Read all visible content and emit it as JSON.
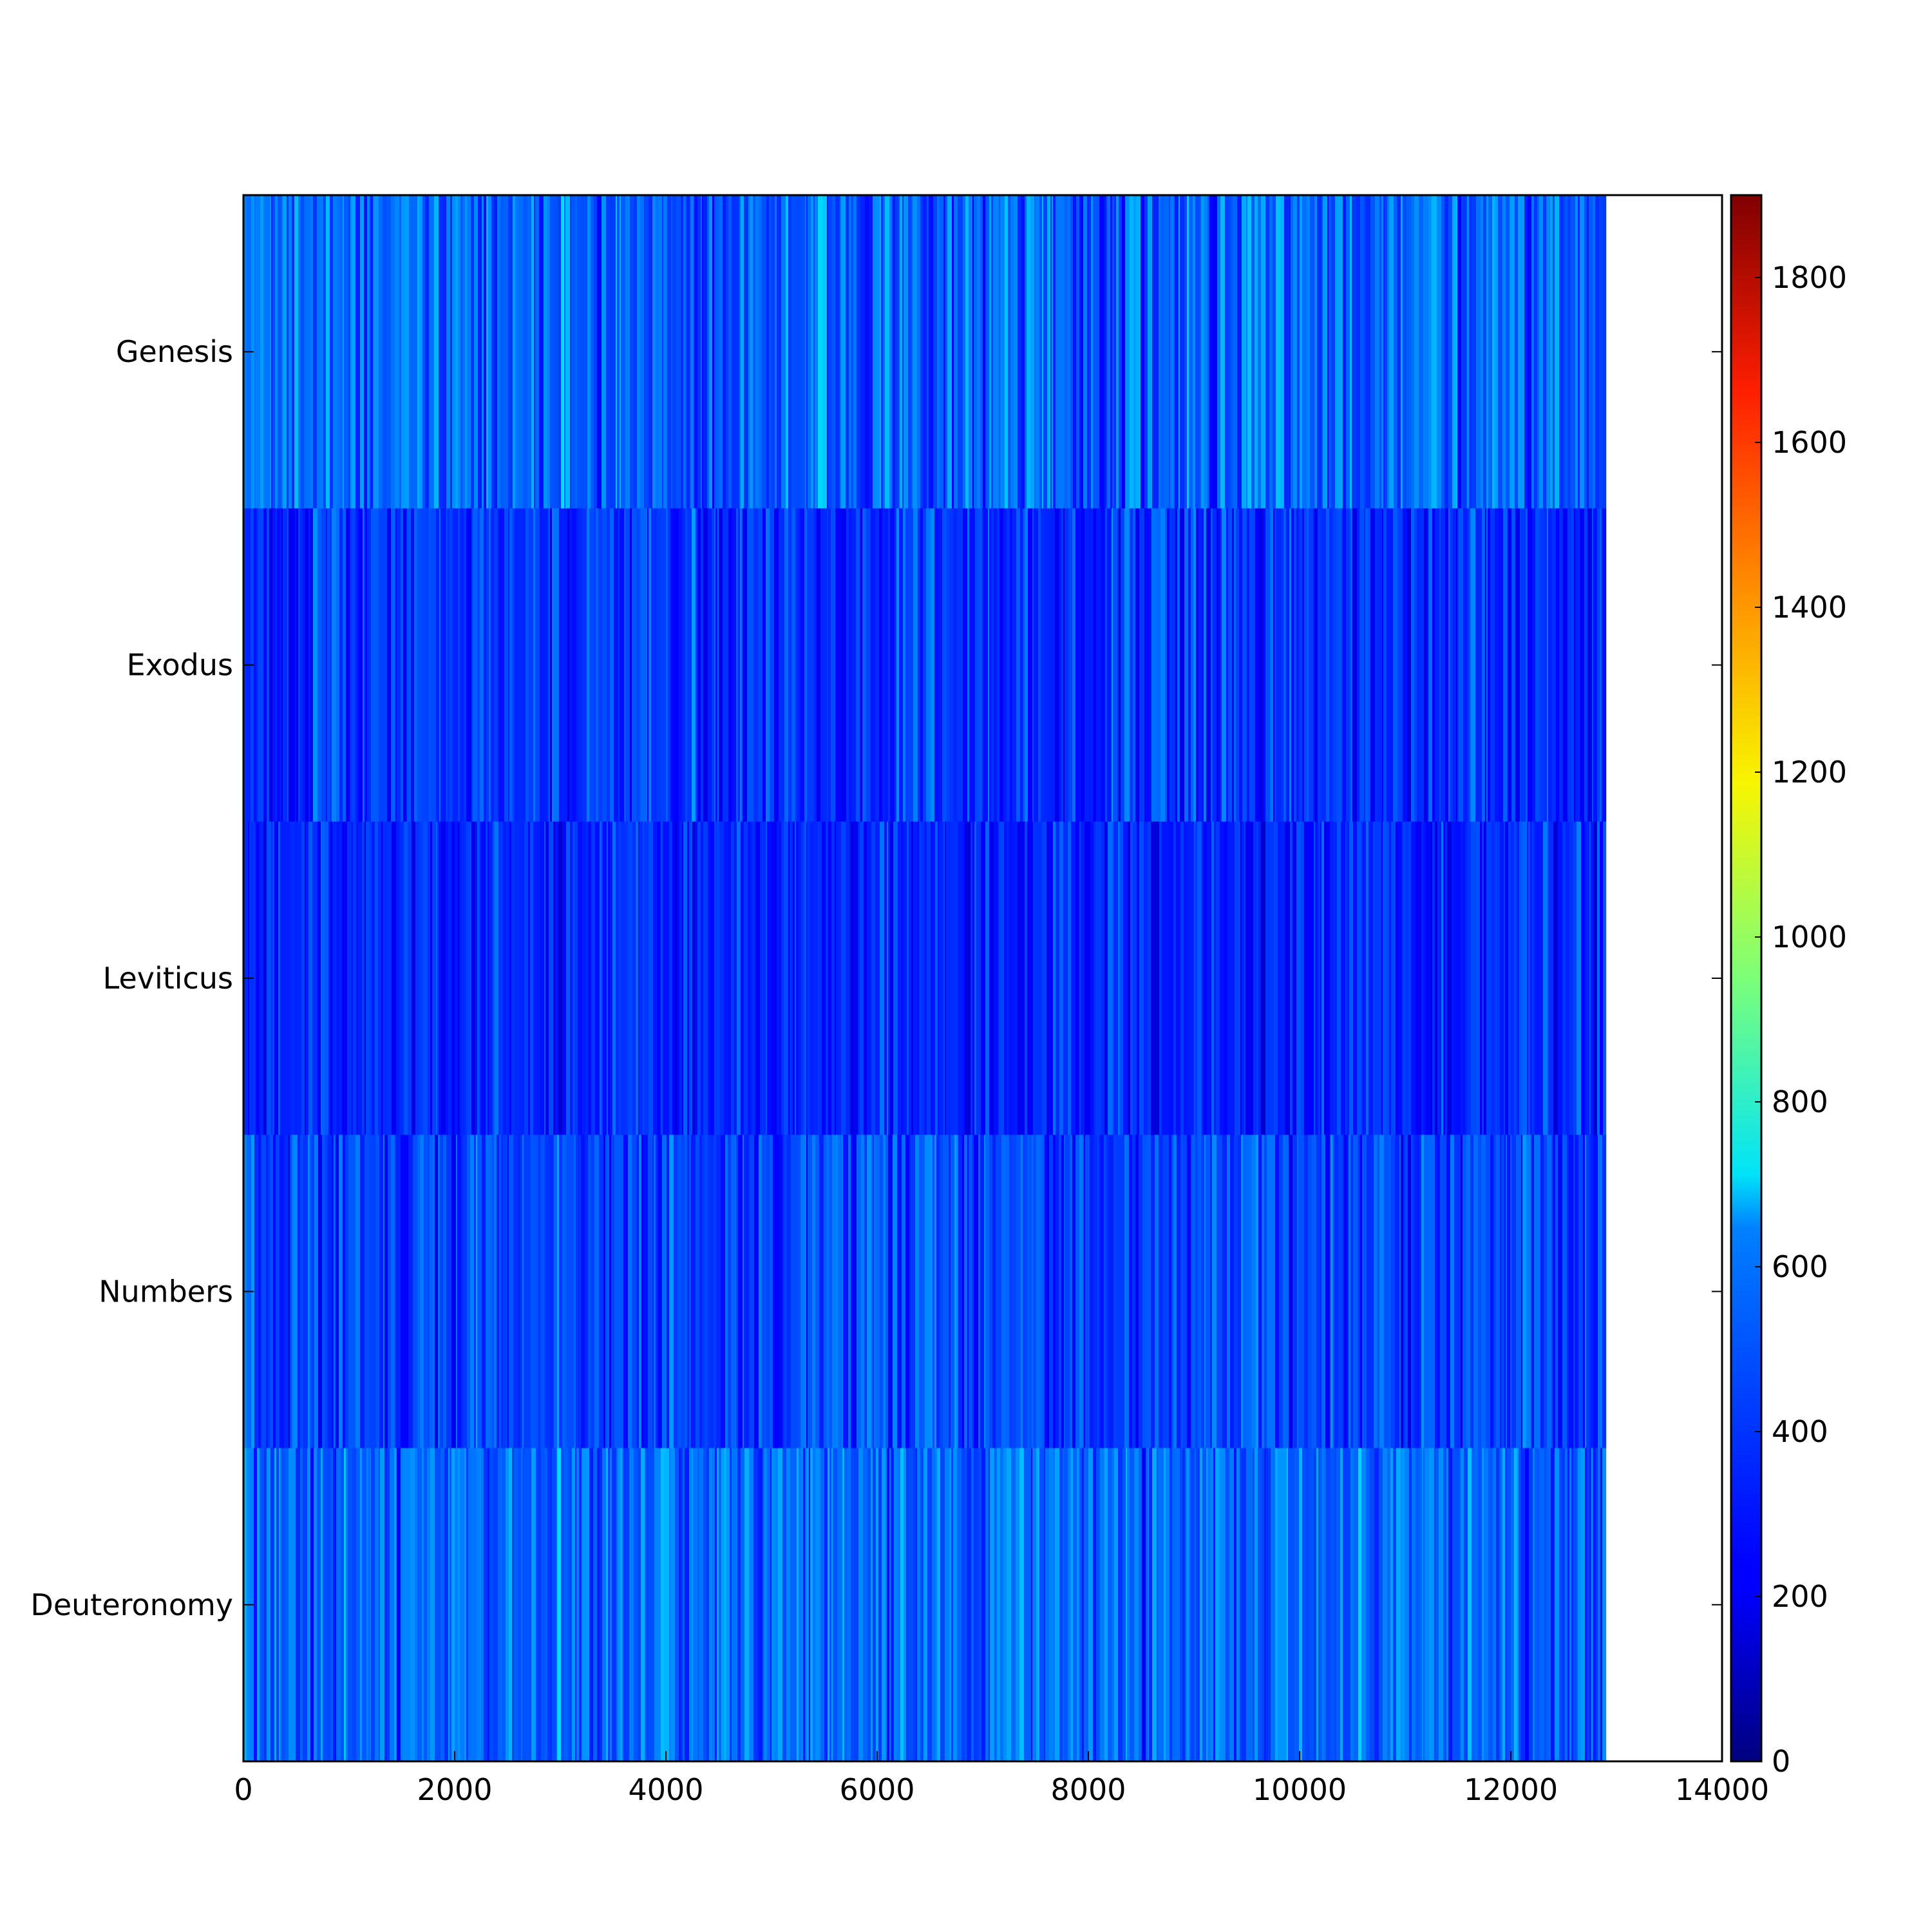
{
  "chart_data": {
    "type": "heatmap",
    "title": "",
    "xlabel": "",
    "ylabel": "",
    "rows": [
      "Genesis",
      "Exodus",
      "Leviticus",
      "Numbers",
      "Deuteronomy"
    ],
    "x_extent": 12900,
    "xlim": [
      0,
      14000
    ],
    "x_ticks": [
      "0",
      "2000",
      "4000",
      "6000",
      "8000",
      "10000",
      "12000",
      "14000"
    ],
    "colorbar": {
      "colormap": "jet",
      "range": [
        0,
        1900
      ],
      "ticks": [
        "0",
        "200",
        "400",
        "600",
        "800",
        "1000",
        "1200",
        "1400",
        "1600",
        "1800"
      ]
    },
    "row_value_profile": {
      "Genesis": {
        "mean": 420,
        "spread": 260
      },
      "Exodus": {
        "mean": 330,
        "spread": 220
      },
      "Leviticus": {
        "mean": 300,
        "spread": 200
      },
      "Numbers": {
        "mean": 360,
        "spread": 230
      },
      "Deuteronomy": {
        "mean": 430,
        "spread": 240
      }
    },
    "grid": false
  }
}
